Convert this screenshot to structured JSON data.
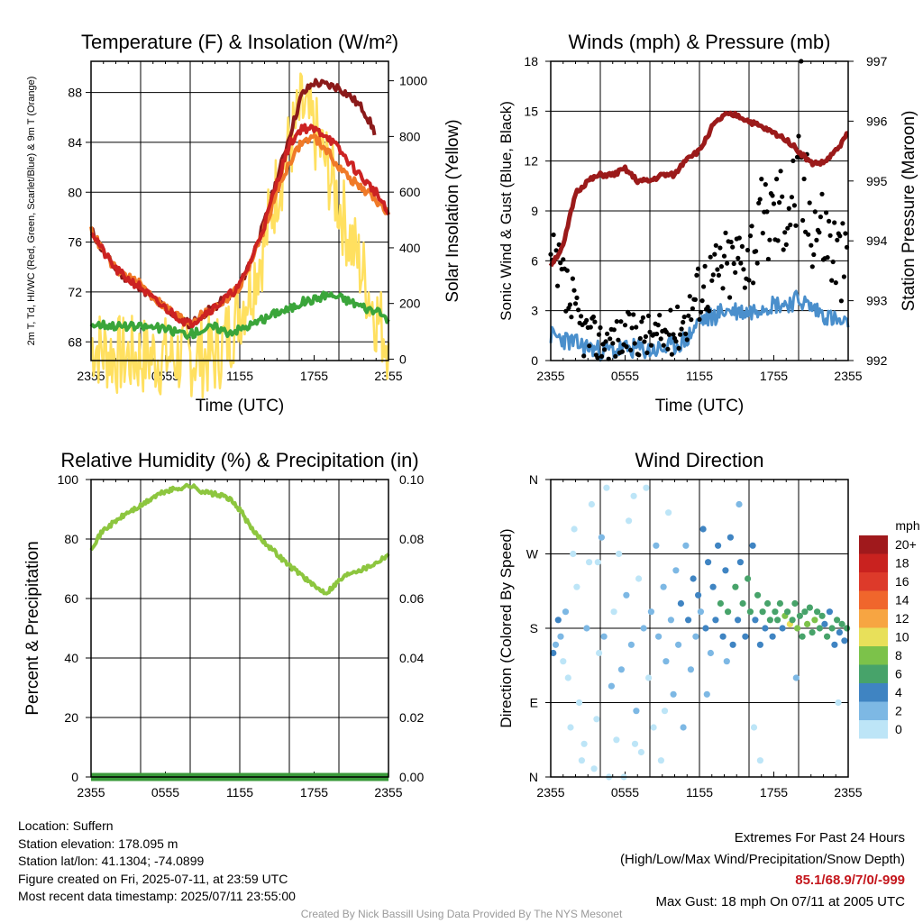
{
  "chart_data": [
    {
      "id": "temp",
      "type": "line",
      "title": "Temperature (F) & Insolation (W/m²)",
      "xlabel": "Time (UTC)",
      "ylabel": "2m T, Td, HI/WC (Red, Green, Scarlet/Blue) & 9m T (Orange)",
      "ylabel2": "Solar Insolation (Yellow)",
      "x_ticks": [
        "2355",
        "0555",
        "1155",
        "1755",
        "2355"
      ],
      "ylim": [
        66.5,
        90.5
      ],
      "y_ticks": [
        68,
        72,
        76,
        80,
        84,
        88
      ],
      "ylim2": [
        -5,
        1070
      ],
      "y2_ticks": [
        0,
        200,
        400,
        600,
        800,
        1000
      ],
      "x_hours": [
        0,
        1,
        2,
        3,
        4,
        5,
        6,
        7,
        8,
        9,
        10,
        11,
        12,
        13,
        14,
        15,
        16,
        17,
        18,
        19,
        20,
        21,
        22,
        23,
        24
      ],
      "series": [
        {
          "key": "hi",
          "color": "#8b1a1a",
          "values": [
            77.0,
            75.2,
            73.8,
            73.0,
            72.4,
            71.4,
            70.7,
            70.0,
            69.4,
            70.2,
            70.8,
            71.6,
            72.5,
            74.8,
            77.6,
            81.0,
            84.5,
            87.8,
            88.8,
            88.6,
            88.4,
            87.6,
            86.6,
            84.6,
            null
          ]
        },
        {
          "key": "t9",
          "color": "#f07a28",
          "values": [
            77.0,
            75.2,
            73.8,
            73.2,
            72.6,
            71.6,
            70.8,
            70.1,
            69.5,
            70.2,
            70.8,
            71.5,
            72.4,
            74.6,
            77.2,
            80.0,
            82.4,
            84.0,
            84.4,
            83.4,
            82.0,
            81.0,
            80.2,
            79.4,
            78.2
          ]
        },
        {
          "key": "t2",
          "color": "#cc2222",
          "values": [
            77.0,
            75.2,
            73.8,
            73.0,
            72.4,
            71.4,
            70.7,
            70.0,
            69.4,
            70.2,
            70.8,
            71.6,
            72.5,
            74.8,
            77.4,
            80.8,
            83.8,
            85.2,
            85.0,
            84.6,
            83.4,
            82.2,
            81.0,
            80.0,
            78.2
          ]
        },
        {
          "key": "td",
          "color": "#3aa53a",
          "values": [
            69.4,
            69.4,
            69.3,
            69.2,
            69.2,
            69.2,
            69.0,
            68.8,
            68.6,
            69.0,
            69.2,
            68.8,
            69.0,
            69.4,
            69.8,
            70.4,
            70.6,
            71.2,
            71.4,
            71.8,
            71.6,
            71.2,
            70.8,
            70.4,
            69.8
          ]
        }
      ],
      "insolation": {
        "color": "#ffe060",
        "values": [
          60,
          30,
          15,
          10,
          10,
          10,
          10,
          10,
          10,
          10,
          10,
          80,
          180,
          280,
          420,
          620,
          760,
          900,
          820,
          700,
          560,
          420,
          300,
          160,
          60
        ]
      }
    },
    {
      "id": "winds",
      "type": "line",
      "title": "Winds (mph) & Pressure (mb)",
      "xlabel": "Time (UTC)",
      "ylabel": "Sonic Wind & Gust (Blue, Black)",
      "ylabel2": "Station Pressure (Maroon)",
      "x_ticks": [
        "2355",
        "0555",
        "1155",
        "1755",
        "2355"
      ],
      "ylim": [
        0,
        18
      ],
      "y_ticks": [
        0,
        3,
        6,
        9,
        12,
        15,
        18
      ],
      "ylim2": [
        992,
        997
      ],
      "y2_ticks": [
        992,
        993,
        994,
        995,
        996,
        997
      ],
      "x_hours": [
        0,
        1,
        2,
        3,
        4,
        5,
        6,
        7,
        8,
        9,
        10,
        11,
        12,
        13,
        14,
        15,
        16,
        17,
        18,
        19,
        20,
        21,
        22,
        23,
        24
      ],
      "pressure": {
        "color": "#9b1a1a",
        "values": [
          993.6,
          993.9,
          994.8,
          995.0,
          995.1,
          995.1,
          995.2,
          995.0,
          995.0,
          995.1,
          995.1,
          995.4,
          995.5,
          995.9,
          996.1,
          996.1,
          996.0,
          995.9,
          995.8,
          995.7,
          995.5,
          995.3,
          995.3,
          995.5,
          995.8
        ]
      },
      "sustained": {
        "color": "#4a8fcc",
        "values": [
          1.5,
          1.3,
          1.0,
          0.8,
          0.6,
          0.6,
          0.7,
          0.7,
          0.6,
          0.7,
          0.9,
          1.3,
          2.4,
          2.6,
          3.0,
          3.0,
          2.9,
          3.3,
          3.4,
          3.4,
          3.7,
          3.2,
          2.8,
          2.4,
          2.0
        ]
      },
      "gust": {
        "color": "#000000",
        "values": [
          5.5,
          4.5,
          2.5,
          1.5,
          1.2,
          1.3,
          1.5,
          1.7,
          1.5,
          1.5,
          1.8,
          2.7,
          4.5,
          5.0,
          5.7,
          6.0,
          6.8,
          8.0,
          9.0,
          9.5,
          10.5,
          9.0,
          8.0,
          6.5,
          5.5
        ]
      },
      "max_gust": {
        "hour": 20.2,
        "value": 18
      }
    },
    {
      "id": "rh",
      "type": "line",
      "title": "Relative Humidity (%) & Precipitation (in)",
      "xlabel": "",
      "ylabel": "Percent & Precipitation",
      "x_ticks": [
        "2355",
        "0555",
        "1155",
        "1755",
        "2355"
      ],
      "ylim": [
        0,
        100
      ],
      "y_ticks": [
        0,
        20,
        40,
        60,
        80,
        100
      ],
      "ylim2": [
        0,
        0.1
      ],
      "y2_ticks": [
        "0.00",
        "0.02",
        "0.04",
        "0.06",
        "0.08",
        "0.10"
      ],
      "x_hours": [
        0,
        1,
        2,
        3,
        4,
        5,
        6,
        7,
        8,
        9,
        10,
        11,
        12,
        13,
        14,
        15,
        16,
        17,
        18,
        19,
        20,
        21,
        22,
        23,
        24
      ],
      "series": [
        {
          "key": "rh",
          "color": "#8dc63f",
          "values": [
            77,
            83,
            86,
            89,
            91,
            94,
            96,
            97,
            98,
            96,
            95,
            94,
            90,
            83,
            79,
            75,
            71,
            68,
            64,
            62,
            66,
            69,
            70,
            72,
            75
          ]
        },
        {
          "key": "precip",
          "color": "#3a9a3a",
          "values": [
            0,
            0,
            0,
            0,
            0,
            0,
            0,
            0,
            0,
            0,
            0,
            0,
            0,
            0,
            0,
            0,
            0,
            0,
            0,
            0,
            0,
            0,
            0,
            0,
            0
          ]
        }
      ]
    },
    {
      "id": "wdir",
      "type": "scatter",
      "title": "Wind Direction",
      "xlabel": "",
      "ylabel": "Direction (Colored By Speed)",
      "x_ticks": [
        "2355",
        "0555",
        "1155",
        "1755",
        "2355"
      ],
      "y_ticks": [
        "N",
        "E",
        "S",
        "W",
        "N"
      ],
      "ylim": [
        0,
        360
      ],
      "legend": {
        "title": "mph",
        "labels": [
          "20+",
          "18",
          "16",
          "14",
          "12",
          "10",
          "8",
          "6",
          "4",
          "2",
          "0"
        ],
        "colors": [
          "#a0191c",
          "#c9221f",
          "#dd3a2a",
          "#f0662c",
          "#f7a542",
          "#e8e05a",
          "#7cc24a",
          "#47a36a",
          "#3f84c2",
          "#7db8e4",
          "#bde5f7"
        ]
      },
      "points": [
        [
          0.2,
          150,
          2
        ],
        [
          0.4,
          160,
          1
        ],
        [
          0.6,
          190,
          2
        ],
        [
          0.8,
          170,
          1
        ],
        [
          1.0,
          140,
          0
        ],
        [
          1.2,
          200,
          1
        ],
        [
          1.4,
          120,
          0
        ],
        [
          1.6,
          60,
          0
        ],
        [
          1.9,
          300,
          0
        ],
        [
          2.1,
          230,
          0
        ],
        [
          2.3,
          90,
          0
        ],
        [
          2.5,
          20,
          0
        ],
        [
          2.7,
          40,
          0
        ],
        [
          2.9,
          180,
          1
        ],
        [
          3.1,
          260,
          0
        ],
        [
          3.3,
          330,
          0
        ],
        [
          3.5,
          10,
          0
        ],
        [
          3.7,
          70,
          0
        ],
        [
          3.9,
          150,
          0
        ],
        [
          4.1,
          290,
          1
        ],
        [
          4.3,
          170,
          1
        ],
        [
          4.5,
          350,
          0
        ],
        [
          4.7,
          0,
          0
        ],
        [
          4.9,
          110,
          1
        ],
        [
          5.1,
          200,
          0
        ],
        [
          5.3,
          45,
          0
        ],
        [
          5.5,
          270,
          0
        ],
        [
          5.7,
          130,
          1
        ],
        [
          5.9,
          0,
          0
        ],
        [
          6.1,
          220,
          1
        ],
        [
          6.3,
          310,
          0
        ],
        [
          6.5,
          160,
          1
        ],
        [
          6.7,
          340,
          0
        ],
        [
          6.9,
          80,
          1
        ],
        [
          7.1,
          240,
          0
        ],
        [
          7.3,
          30,
          0
        ],
        [
          7.5,
          180,
          1
        ],
        [
          7.7,
          350,
          0
        ],
        [
          7.9,
          120,
          0
        ],
        [
          8.1,
          200,
          1
        ],
        [
          8.3,
          60,
          0
        ],
        [
          8.5,
          280,
          1
        ],
        [
          8.7,
          170,
          1
        ],
        [
          8.9,
          20,
          0
        ],
        [
          9.1,
          230,
          1
        ],
        [
          9.3,
          140,
          1
        ],
        [
          9.5,
          320,
          0
        ],
        [
          9.7,
          190,
          1
        ],
        [
          9.9,
          100,
          1
        ],
        [
          10.1,
          250,
          1
        ],
        [
          10.3,
          160,
          1
        ],
        [
          10.5,
          210,
          2
        ],
        [
          10.7,
          60,
          1
        ],
        [
          10.9,
          280,
          1
        ],
        [
          11.1,
          190,
          2
        ],
        [
          11.3,
          130,
          1
        ],
        [
          11.5,
          240,
          2
        ],
        [
          11.7,
          170,
          1
        ],
        [
          11.9,
          220,
          2
        ],
        [
          12.1,
          200,
          1
        ],
        [
          12.3,
          300,
          2
        ],
        [
          12.5,
          180,
          2
        ],
        [
          12.7,
          260,
          2
        ],
        [
          12.9,
          150,
          1
        ],
        [
          13.1,
          230,
          2
        ],
        [
          13.3,
          190,
          2
        ],
        [
          13.5,
          280,
          2
        ],
        [
          13.7,
          210,
          3
        ],
        [
          13.9,
          170,
          2
        ],
        [
          14.1,
          250,
          2
        ],
        [
          14.3,
          200,
          3
        ],
        [
          14.5,
          290,
          2
        ],
        [
          14.7,
          160,
          2
        ],
        [
          14.9,
          230,
          3
        ],
        [
          15.1,
          190,
          2
        ],
        [
          15.3,
          260,
          2
        ],
        [
          15.5,
          210,
          3
        ],
        [
          15.7,
          170,
          2
        ],
        [
          15.9,
          240,
          3
        ],
        [
          16.1,
          200,
          3
        ],
        [
          16.3,
          280,
          2
        ],
        [
          16.5,
          190,
          2
        ],
        [
          16.7,
          220,
          3
        ],
        [
          16.9,
          160,
          2
        ],
        [
          17.1,
          200,
          3
        ],
        [
          17.3,
          180,
          2
        ],
        [
          17.5,
          210,
          3
        ],
        [
          17.7,
          190,
          3
        ],
        [
          17.9,
          170,
          2
        ],
        [
          18.1,
          200,
          3
        ],
        [
          18.3,
          190,
          3
        ],
        [
          18.5,
          210,
          3
        ],
        [
          18.7,
          180,
          2
        ],
        [
          18.9,
          195,
          4
        ],
        [
          19.1,
          200,
          3
        ],
        [
          19.3,
          185,
          5
        ],
        [
          19.5,
          190,
          3
        ],
        [
          19.7,
          210,
          3
        ],
        [
          19.9,
          180,
          4
        ],
        [
          20.1,
          195,
          3
        ],
        [
          20.3,
          170,
          3
        ],
        [
          20.5,
          200,
          3
        ],
        [
          20.7,
          185,
          4
        ],
        [
          20.9,
          205,
          3
        ],
        [
          21.1,
          175,
          3
        ],
        [
          21.3,
          190,
          4
        ],
        [
          21.5,
          200,
          3
        ],
        [
          21.7,
          180,
          3
        ],
        [
          21.9,
          195,
          3
        ],
        [
          22.1,
          185,
          2
        ],
        [
          22.3,
          170,
          3
        ],
        [
          22.5,
          200,
          2
        ],
        [
          22.7,
          180,
          3
        ],
        [
          22.9,
          160,
          2
        ],
        [
          23.1,
          190,
          3
        ],
        [
          23.3,
          175,
          2
        ],
        [
          23.5,
          185,
          3
        ],
        [
          23.7,
          165,
          2
        ],
        [
          23.9,
          180,
          3
        ],
        [
          23.2,
          90,
          0
        ],
        [
          16.4,
          60,
          0
        ],
        [
          16.9,
          20,
          0
        ],
        [
          15.2,
          330,
          1
        ],
        [
          14.2,
          140,
          1
        ],
        [
          12.6,
          100,
          1
        ],
        [
          9.2,
          80,
          0
        ],
        [
          6.8,
          40,
          0
        ],
        [
          3.8,
          260,
          0
        ],
        [
          1.8,
          270,
          0
        ],
        [
          19.8,
          120,
          1
        ]
      ]
    }
  ],
  "info": {
    "location": "Location: Suffern",
    "elevation": "Station elevation: 178.095 m",
    "latlon": "Station lat/lon: 41.1304; -74.0899",
    "created": "Figure created on Fri, 2025-07-11, at 23:59 UTC",
    "recent": "Most recent data timestamp: 2025/07/11 23:55:00"
  },
  "extremes": {
    "title": "Extremes For Past 24 Hours",
    "subtitle": "(High/Low/Max Wind/Precipitation/Snow Depth)",
    "values": "85.1/68.9/7/0/-999",
    "gust": "Max Gust: 18 mph On 07/11 at 2005 UTC"
  },
  "credit": "Created By Nick Bassill Using Data Provided By The NYS Mesonet"
}
